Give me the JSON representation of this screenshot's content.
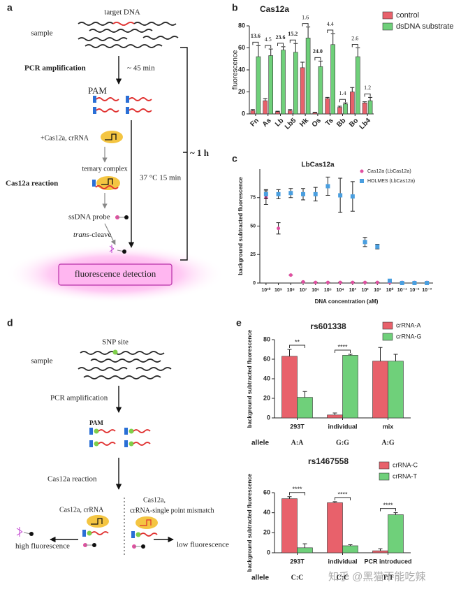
{
  "panel_labels": [
    "a",
    "b",
    "c",
    "d",
    "e"
  ],
  "diagrams": {
    "a": {
      "target": "target DNA",
      "sample": "sample",
      "pcr": "PCR amplification",
      "pcr_time": "~ 45 min",
      "pam": "PAM",
      "add": "+Cas12a, crRNA",
      "complex": "ternary complex",
      "reaction": "Cas12a reaction",
      "incubation": "37 °C  15 min",
      "probe": "ssDNA probe",
      "cleave_italic": "trans",
      "cleave": "-cleave",
      "detection": "fluorescence detection",
      "total_time": "~ 1 h"
    },
    "d": {
      "snp": "SNP site",
      "sample": "sample",
      "pcr": "PCR amplification",
      "pam": "PAM",
      "reaction": "Cas12a reaction",
      "match": "Cas12a, crRNA",
      "mismatch_1": "Cas12a,",
      "mismatch_2": "crRNA-single point mismatch",
      "high": "high fluorescence",
      "low": "low fluorescence"
    }
  },
  "watermark": "知乎 @黑猫不能吃辣",
  "chart_data": [
    {
      "type": "bar",
      "title": "Cas12a",
      "ylabel": "fluorescence",
      "categories": [
        "Fn",
        "As",
        "Lb",
        "Lb5",
        "Hk",
        "Os",
        "Ts",
        "Bb",
        "Bo",
        "Lb4"
      ],
      "ylim": [
        0,
        80
      ],
      "yticks": [
        0,
        20,
        40,
        60,
        80
      ],
      "legend": "top-right",
      "series": [
        {
          "name": "control",
          "color": "#e8616b",
          "values": [
            3,
            12,
            2,
            3,
            42,
            1,
            14,
            6,
            20,
            10
          ],
          "errors": [
            1,
            2,
            0.5,
            1,
            5,
            0.5,
            1,
            1,
            4,
            1
          ]
        },
        {
          "name": "dsDNA substrate",
          "color": "#6fd07a",
          "values": [
            52,
            53,
            58,
            56,
            69,
            43,
            63,
            9,
            52,
            12
          ],
          "errors": [
            10,
            6,
            3,
            8,
            10,
            5,
            10,
            1,
            8,
            3
          ]
        }
      ],
      "annotations": [
        {
          "text": "13.6",
          "color": "#e0302f"
        },
        {
          "text": "4.5",
          "color": "#444444"
        },
        {
          "text": "23.6",
          "color": "#e0302f"
        },
        {
          "text": "15.2",
          "color": "#e0302f"
        },
        {
          "text": "1.6",
          "color": "#444444"
        },
        {
          "text": "24.0",
          "color": "#e0302f"
        },
        {
          "text": "4.4",
          "color": "#444444"
        },
        {
          "text": "1.4",
          "color": "#444444"
        },
        {
          "text": "2.6",
          "color": "#444444"
        },
        {
          "text": "1.2",
          "color": "#444444"
        }
      ]
    },
    {
      "type": "scatter",
      "title": "LbCas12a",
      "xlabel": "DNA concentration (aM)",
      "ylabel": "background subtracted fluorescence",
      "categories": [
        "10¹⁰",
        "10⁹",
        "10⁸",
        "10⁷",
        "10⁶",
        "10⁵",
        "10⁴",
        "10³",
        "10²",
        "10¹",
        "10⁰",
        "10⁻¹",
        "10⁻²",
        "10⁻³"
      ],
      "ylim": [
        0,
        100
      ],
      "yticks": [
        0,
        25,
        50,
        75
      ],
      "legend": "top-right",
      "series": [
        {
          "name": "Cas12a (LbCas12a)",
          "color": "#e04fa0",
          "marker": "circle",
          "values": [
            75,
            48,
            7,
            1,
            0.5,
            0.5,
            0.5,
            0.5,
            0.5,
            0.5,
            0.5,
            0.5,
            0.5,
            0.5
          ],
          "errors": [
            6,
            5,
            0,
            0,
            0,
            0,
            0,
            0,
            0,
            0,
            0,
            0,
            0,
            0
          ]
        },
        {
          "name": "HOLMES (LbCas12a)",
          "color": "#4a9fe0",
          "marker": "square",
          "values": [
            78,
            78,
            79,
            78,
            78,
            85,
            77,
            76,
            36,
            32,
            2,
            0,
            0,
            0
          ],
          "errors": [
            4,
            4,
            4,
            5,
            6,
            8,
            15,
            13,
            4,
            2,
            1,
            0,
            0,
            0
          ]
        }
      ]
    },
    {
      "type": "bar",
      "title": "rs601338",
      "ylabel": "background subtracted fluorescence",
      "categories": [
        "293T",
        "individual",
        "mix"
      ],
      "ylim": [
        0,
        80
      ],
      "yticks": [
        0,
        20,
        40,
        60,
        80
      ],
      "legend": "top-right",
      "series": [
        {
          "name": "crRNA-A",
          "color": "#e8616b",
          "values": [
            63,
            3,
            58
          ],
          "errors": [
            7,
            2,
            14
          ]
        },
        {
          "name": "crRNA-G",
          "color": "#6fd07a",
          "values": [
            21,
            64,
            58
          ],
          "errors": [
            6,
            1,
            7
          ]
        }
      ],
      "significance": [
        "**",
        "****",
        null
      ],
      "allele_label": "allele",
      "alleles": [
        "A:A",
        "G:G",
        "A:G"
      ]
    },
    {
      "type": "bar",
      "title": "rs1467558",
      "ylabel": "background subtracted fluorescence",
      "categories": [
        "293T",
        "individual",
        "PCR introduced"
      ],
      "ylim": [
        0,
        60
      ],
      "yticks": [
        0,
        20,
        40,
        60
      ],
      "legend": "top-right",
      "series": [
        {
          "name": "crRNA-C",
          "color": "#e8616b",
          "values": [
            54,
            50,
            2
          ],
          "errors": [
            2,
            1,
            2
          ]
        },
        {
          "name": "crRNA-T",
          "color": "#6fd07a",
          "values": [
            5,
            7,
            38
          ],
          "errors": [
            4,
            1,
            2
          ]
        }
      ],
      "significance": [
        "****",
        "****",
        "****"
      ],
      "allele_label": "allele",
      "alleles": [
        "C:C",
        "C:C",
        "T:T"
      ]
    }
  ]
}
